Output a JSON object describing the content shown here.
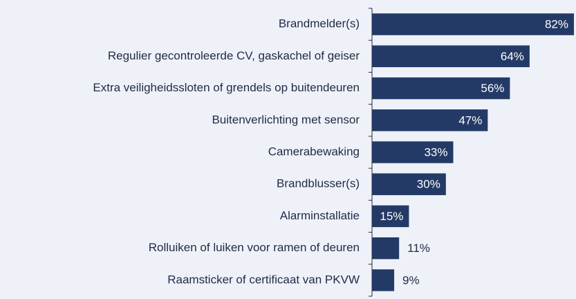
{
  "chart_data": {
    "type": "bar",
    "orientation": "horizontal",
    "color": "#243a66",
    "categories": [
      "Brandmelder(s)",
      "Regulier gecontroleerde CV, gaskachel of geiser",
      "Extra veiligheidssloten of grendels op buitendeuren",
      "Buitenverlichting met sensor",
      "Camerabewaking",
      "Brandblusser(s)",
      "Alarminstallatie",
      "Rolluiken of luiken voor ramen of deuren",
      "Raamsticker of certificaat van PKVW"
    ],
    "values": [
      82,
      64,
      56,
      47,
      33,
      30,
      15,
      11,
      9
    ],
    "value_labels": [
      "82%",
      "64%",
      "56%",
      "47%",
      "33%",
      "30%",
      "15%",
      "11%",
      "9%"
    ]
  }
}
